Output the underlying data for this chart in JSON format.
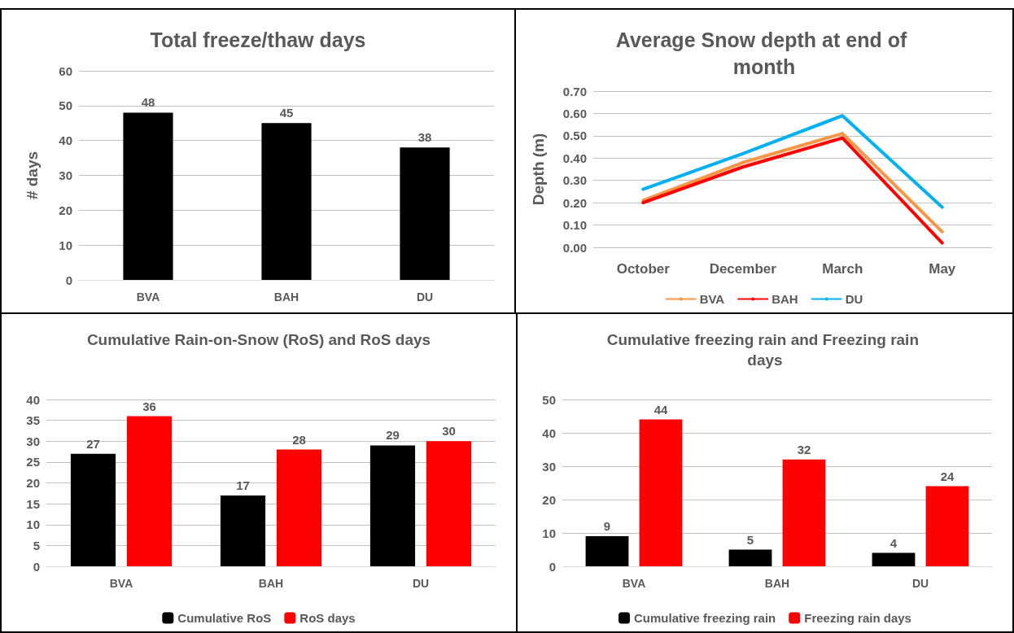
{
  "chart_data": [
    {
      "type": "bar",
      "title": "Total freeze/thaw days",
      "ylabel": "# days",
      "categories": [
        "BVA",
        "BAH",
        "DU"
      ],
      "values": [
        48,
        45,
        38
      ],
      "color": "#000000",
      "ylim": [
        0,
        60
      ],
      "yticks": [
        0,
        10,
        20,
        30,
        40,
        50,
        60
      ],
      "grid": "y",
      "data_labels": true,
      "legend": false
    },
    {
      "type": "line",
      "title": "Average Snow depth at end of month",
      "ylabel": "Depth (m)",
      "categories": [
        "October",
        "December",
        "March",
        "May"
      ],
      "series": [
        {
          "name": "BVA",
          "color": "#f79646",
          "values": [
            0.21,
            0.38,
            0.51,
            0.07
          ]
        },
        {
          "name": "BAH",
          "color": "#ff0000",
          "values": [
            0.2,
            0.36,
            0.49,
            0.02
          ]
        },
        {
          "name": "DU",
          "color": "#00b0f0",
          "values": [
            0.26,
            0.42,
            0.59,
            0.18
          ]
        }
      ],
      "ylim": [
        0,
        0.7
      ],
      "yticks": [
        {
          "value": 0,
          "label": "0.00"
        },
        {
          "value": 0.1,
          "label": "0.10"
        },
        {
          "value": 0.2,
          "label": "0.20"
        },
        {
          "value": 0.3,
          "label": "0.30"
        },
        {
          "value": 0.4,
          "label": "0.40"
        },
        {
          "value": 0.5,
          "label": "0.50"
        },
        {
          "value": 0.6,
          "label": "0.60"
        },
        {
          "value": 0.7,
          "label": "0.70"
        }
      ],
      "grid": "y",
      "legend": "bottom",
      "marker": "none",
      "line_style": "solid"
    },
    {
      "type": "bar",
      "title": "Cumulative Rain-on-Snow (RoS) and RoS days",
      "categories": [
        "BVA",
        "BAH",
        "DU"
      ],
      "series": [
        {
          "name": "Cumulative RoS",
          "color": "#000000",
          "values": [
            27,
            17,
            29
          ]
        },
        {
          "name": "RoS days",
          "color": "#ff0000",
          "values": [
            36,
            28,
            30
          ]
        }
      ],
      "ylim": [
        0,
        40
      ],
      "yticks": [
        0,
        5,
        10,
        15,
        20,
        25,
        30,
        35,
        40
      ],
      "grid": "y",
      "data_labels": true,
      "legend": "bottom"
    },
    {
      "type": "bar",
      "title": "Cumulative freezing rain and Freezing rain days",
      "categories": [
        "BVA",
        "BAH",
        "DU"
      ],
      "series": [
        {
          "name": "Cumulative freezing rain",
          "color": "#000000",
          "values": [
            9,
            5,
            4
          ]
        },
        {
          "name": "Freezing rain days",
          "color": "#ff0000",
          "values": [
            44,
            32,
            24
          ]
        }
      ],
      "ylim": [
        0,
        50
      ],
      "yticks": [
        0,
        10,
        20,
        30,
        40,
        50
      ],
      "grid": "y",
      "data_labels": true,
      "legend": "bottom"
    }
  ]
}
